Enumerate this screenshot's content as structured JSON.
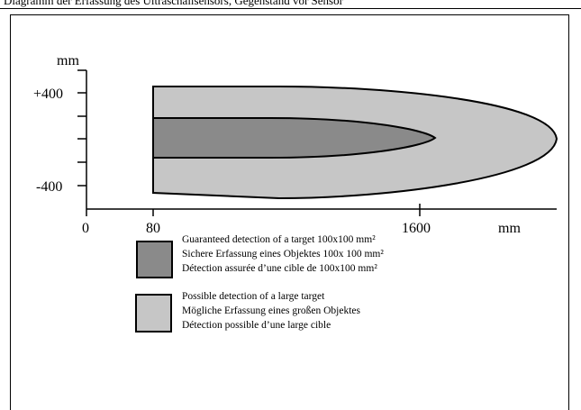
{
  "caption": "Diagramm der Erfassung des Ultraschallsensors, Gegenstand vor Sensor",
  "diagram": {
    "y_unit": "mm",
    "y_ticks": [
      "+400",
      "-400"
    ],
    "x_ticks": [
      "0",
      "80",
      "1600"
    ],
    "x_unit": "mm"
  },
  "legend": [
    {
      "color": "#8a8a8a",
      "lines": [
        "Guaranteed detection of a target 100x100 mm²",
        "Sichere Erfassung eines Objektes 100x 100 mm²",
        "Détection assurée d’une cible de 100x100 mm²"
      ]
    },
    {
      "color": "#c6c6c6",
      "lines": [
        "Possible detection of a large target",
        "Mögliche Erfassung eines  großen Objektes",
        "Détection possible d’une large cible"
      ]
    }
  ]
}
